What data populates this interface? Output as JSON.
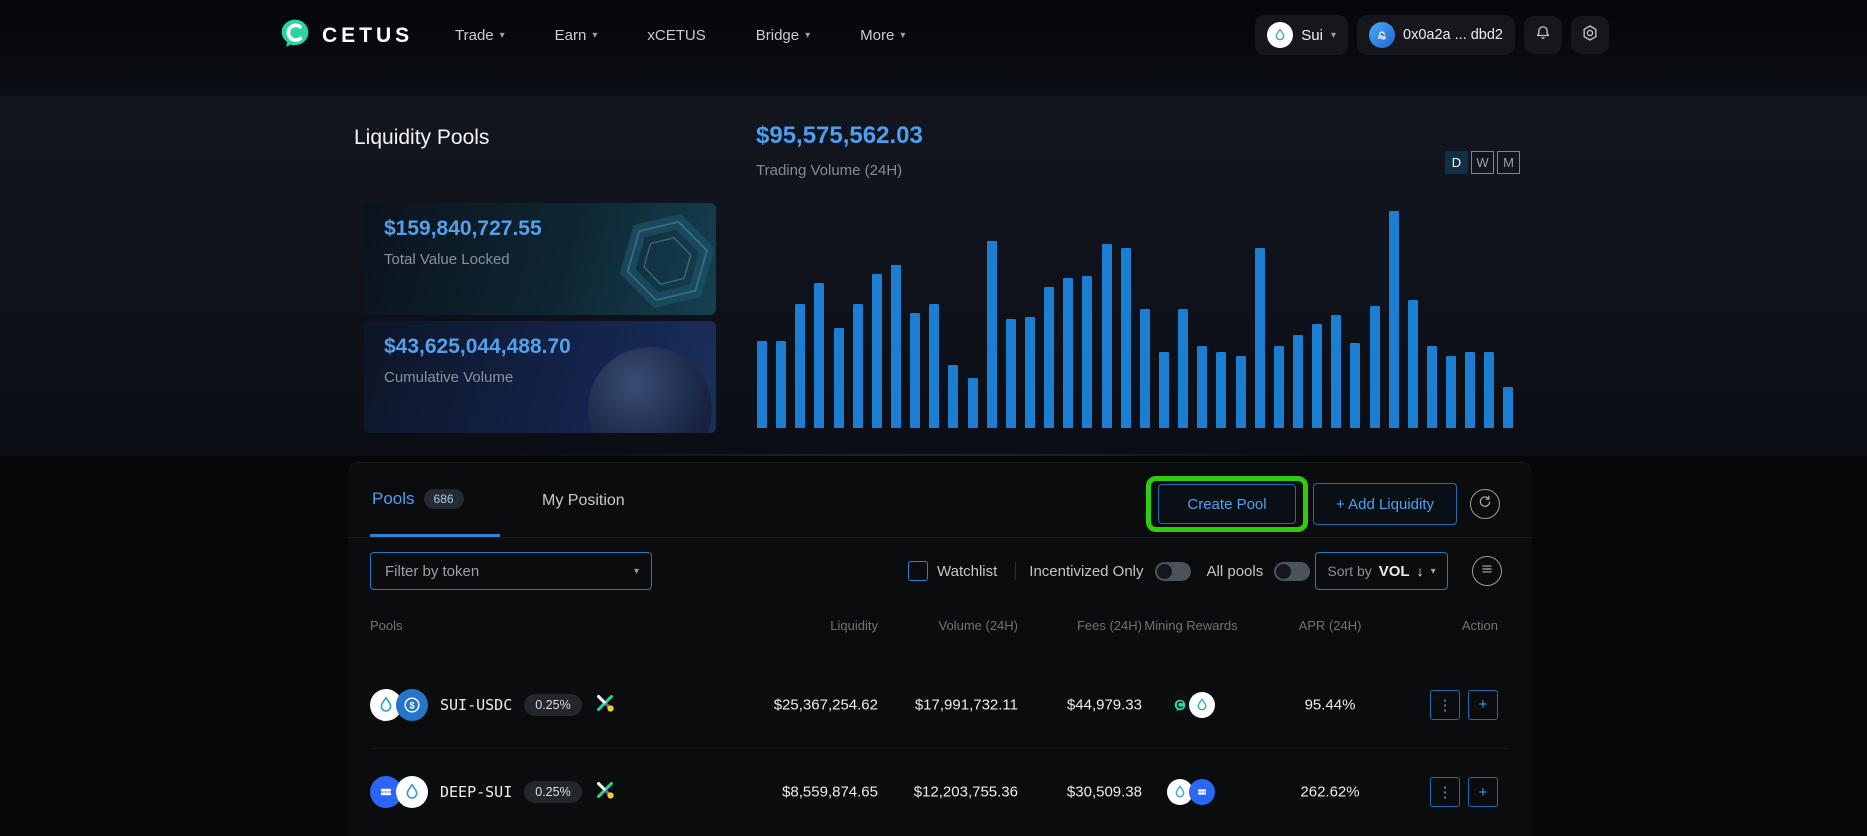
{
  "icons": {
    "chevron_down": "▾",
    "sort_down_arrow": "↓",
    "menu_dots": "⋮",
    "plus": "+"
  },
  "navbar": {
    "brand": "CETUS",
    "items": [
      {
        "label": "Trade",
        "caret": true
      },
      {
        "label": "Earn",
        "caret": true
      },
      {
        "label": "xCETUS",
        "caret": false
      },
      {
        "label": "Bridge",
        "caret": true
      },
      {
        "label": "More",
        "caret": true
      }
    ],
    "network": {
      "label": "Sui"
    },
    "wallet": {
      "address": "0x0a2a ... dbd2"
    }
  },
  "hero": {
    "title": "Liquidity Pools",
    "volume_value": "$95,575,562.03",
    "volume_label": "Trading Volume (24H)",
    "range_buttons": [
      "D",
      "W",
      "M"
    ],
    "active_range": "D",
    "stats": [
      {
        "value": "$159,840,727.55",
        "label": "Total Value Locked"
      },
      {
        "value": "$43,625,044,488.70",
        "label": "Cumulative Volume"
      }
    ]
  },
  "chart_data": {
    "type": "bar",
    "title": "Trading Volume (24H)",
    "current_total": "$95,575,562.03",
    "x_axis": "time (daily buckets, unlabeled)",
    "y_axis_labels_shown": false,
    "grid": false,
    "legend": "none",
    "bar_color": "#1b7ed2",
    "ylim": [
      0,
      100
    ],
    "values": [
      40,
      40,
      57,
      67,
      46,
      57,
      71,
      75,
      53,
      57,
      29,
      23,
      86,
      50,
      51,
      65,
      69,
      70,
      85,
      83,
      55,
      35,
      55,
      38,
      35,
      33,
      83,
      38,
      43,
      48,
      52,
      39,
      56,
      100,
      59,
      38,
      33,
      35,
      35,
      19
    ]
  },
  "pools": {
    "tabs": [
      {
        "label": "Pools",
        "count": "686"
      },
      {
        "label": "My Position"
      }
    ],
    "create_pool_label": "Create Pool",
    "add_liquidity_label": "+ Add Liquidity",
    "filter_placeholder": "Filter by token",
    "watchlist_label": "Watchlist",
    "incentivized_label": "Incentivized Only",
    "all_pools_label": "All pools",
    "sort_label": "Sort by",
    "sort_value": "VOL",
    "columns": [
      "Pools",
      "Liquidity",
      "Volume (24H)",
      "Fees (24H)",
      "Mining Rewards",
      "APR (24H)",
      "Action"
    ],
    "rows": [
      {
        "pair": "SUI-USDC",
        "fee": "0.25%",
        "tokens": [
          "sui",
          "usdc"
        ],
        "router": true,
        "liquidity": "$25,367,254.62",
        "volume": "$17,991,732.11",
        "fees": "$44,979.33",
        "rewards": [
          "cetus",
          "sui"
        ],
        "apr": "95.44%"
      },
      {
        "pair": "DEEP-SUI",
        "fee": "0.25%",
        "tokens": [
          "deep",
          "sui"
        ],
        "router": true,
        "liquidity": "$8,559,874.65",
        "volume": "$12,203,755.36",
        "fees": "$30,509.38",
        "rewards": [
          "sui",
          "deep"
        ],
        "apr": "262.62%"
      }
    ]
  }
}
